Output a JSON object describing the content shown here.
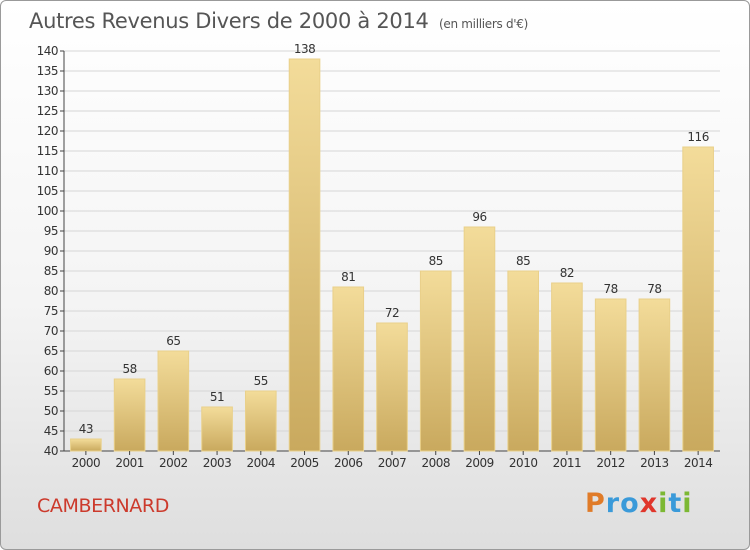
{
  "header": {
    "title": "Autres Revenus Divers de 2000 à 2014",
    "unit": "(en milliers d'€)"
  },
  "footer": {
    "town": "CAMBERNARD",
    "logo_text": "Proxiti",
    "logo_colors": [
      "#e07b28",
      "#3a9ad9",
      "#3a9ad9",
      "#e0362b",
      "#7cb833",
      "#3a9ad9",
      "#7cb833"
    ]
  },
  "colors": {
    "bar_light": "#f3dc9a",
    "bar_dark": "#c9a95e",
    "grid": "#d6d6d6",
    "axis": "#444444",
    "town": "#cc3a2c"
  },
  "chart_data": {
    "type": "bar",
    "title": "Autres Revenus Divers de 2000 à 2014",
    "subtitle": "(en milliers d'€)",
    "categories": [
      "2000",
      "2001",
      "2002",
      "2003",
      "2004",
      "2005",
      "2006",
      "2007",
      "2008",
      "2009",
      "2010",
      "2011",
      "2012",
      "2013",
      "2014"
    ],
    "values": [
      43,
      58,
      65,
      51,
      55,
      138,
      81,
      72,
      85,
      96,
      85,
      82,
      78,
      78,
      116
    ],
    "ylim": [
      40,
      140
    ],
    "ytick_step": 5,
    "grid": true
  }
}
